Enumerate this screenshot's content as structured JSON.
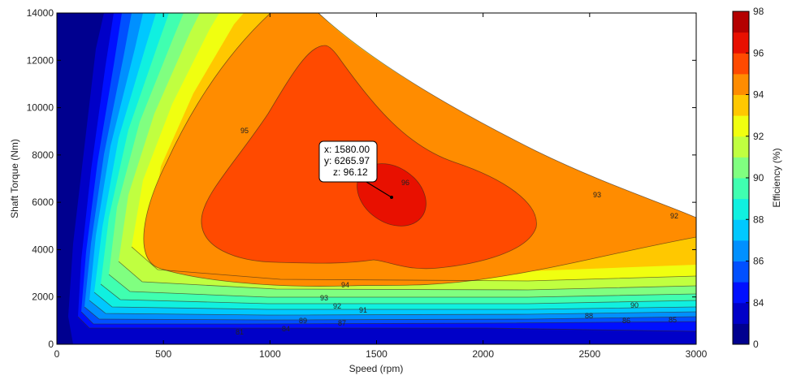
{
  "chart_data": {
    "type": "contour",
    "xlabel": "Speed  (rpm)",
    "ylabel": "Shaft Torque  (Nm)",
    "xlim": [
      0,
      3000
    ],
    "ylim": [
      0,
      14000
    ],
    "x_ticks": [
      "0",
      "500",
      "1000",
      "1500",
      "2000",
      "2500",
      "3000"
    ],
    "y_ticks": [
      "0",
      "2000",
      "4000",
      "6000",
      "8000",
      "10000",
      "12000",
      "14000"
    ],
    "colorbar": {
      "label": "Efficiency (%)",
      "tick_labels": [
        "0",
        "84",
        "86",
        "88",
        "90",
        "92",
        "94",
        "96",
        "98"
      ],
      "levels": [
        {
          "from": 0,
          "to": 83,
          "color": "#00008f"
        },
        {
          "from": 83,
          "to": 84,
          "color": "#0000c8"
        },
        {
          "from": 84,
          "to": 85,
          "color": "#0010ff"
        },
        {
          "from": 85,
          "to": 86,
          "color": "#0050ff"
        },
        {
          "from": 86,
          "to": 87,
          "color": "#0090ff"
        },
        {
          "from": 87,
          "to": 88,
          "color": "#00c8ff"
        },
        {
          "from": 88,
          "to": 89,
          "color": "#10f0e0"
        },
        {
          "from": 89,
          "to": 90,
          "color": "#40ffb0"
        },
        {
          "from": 90,
          "to": 91,
          "color": "#80ff80"
        },
        {
          "from": 91,
          "to": 92,
          "color": "#c0ff40"
        },
        {
          "from": 92,
          "to": 93,
          "color": "#f0ff10"
        },
        {
          "from": 93,
          "to": 94,
          "color": "#ffc800"
        },
        {
          "from": 94,
          "to": 95,
          "color": "#ff8c00"
        },
        {
          "from": 95,
          "to": 96,
          "color": "#ff4a00"
        },
        {
          "from": 96,
          "to": 97,
          "color": "#e81000"
        },
        {
          "from": 97,
          "to": 98,
          "color": "#b40000"
        }
      ]
    },
    "contour_labels": [
      "81",
      "84",
      "89",
      "87",
      "92",
      "91",
      "93",
      "94",
      "95",
      "96",
      "93",
      "92",
      "90",
      "88",
      "86",
      "85"
    ],
    "datatip": {
      "x": "x: 1580.00",
      "y": "y: 6265.97",
      "z": "z: 96.12"
    }
  }
}
